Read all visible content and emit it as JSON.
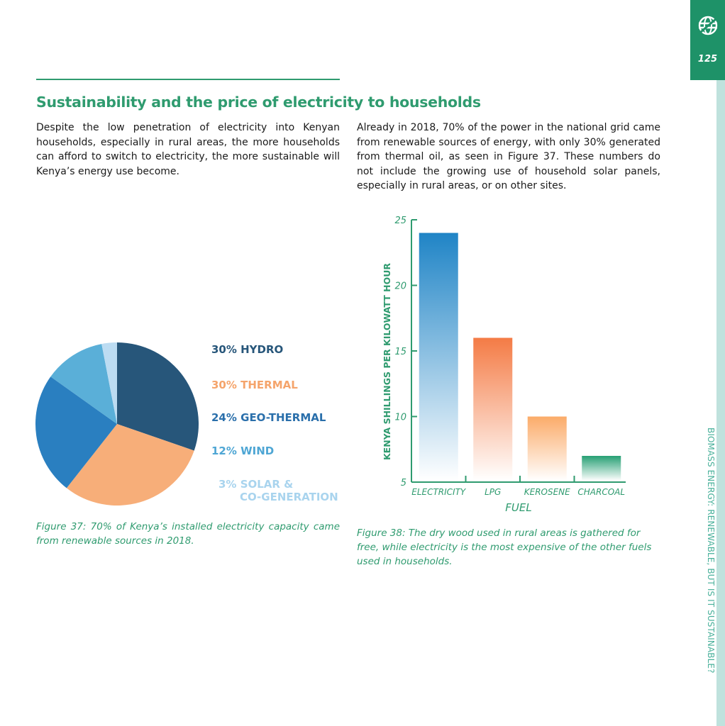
{
  "page": {
    "number": "125",
    "side_title": "BIOMASS ENERGY: RENEWABLE, BUT IS IT SUSTAINABLE?"
  },
  "heading": "Sustainability and the price of electricity to households",
  "paragraphs": {
    "left": "Despite the low penetration of electricity into Kenyan households, especially in rural areas, the more households can afford to switch to electricity, the more sustainable will Kenya’s energy use become.",
    "right": "Already in 2018, 70% of the power in the national grid came from renewable sources of energy, with only 30% generated from thermal oil, as seen in Figure 37.  These numbers do not include the growing use of household solar panels, especially in rural areas, or on other sites."
  },
  "captions": {
    "fig37": "Figure 37: 70% of Kenya’s installed electricity capacity came from renewable sources in 2018.",
    "fig38": "Figure 38: The dry wood used in rural areas is gathered for free, while electricity is the most expensive of the other fuels used in households."
  },
  "colors": {
    "accent": "#2f9b6f",
    "hydro": "#27567a",
    "thermal": "#f7ae79",
    "geothermal": "#2a7fc0",
    "wind": "#5aafd8",
    "solar": "#bcdcf2"
  },
  "chart_data": [
    {
      "type": "pie",
      "title": "",
      "slices": [
        {
          "name": "HYDRO",
          "label_line1": "30% HYDRO",
          "label_line2": "",
          "value": 30,
          "color": "#27567a",
          "label_color": "#27567a"
        },
        {
          "name": "THERMAL",
          "label_line1": "30% THERMAL",
          "label_line2": "",
          "value": 30,
          "color": "#f7ae79",
          "label_color": "#f5a46b"
        },
        {
          "name": "GEO-THERMAL",
          "label_line1": "24% GEO-THERMAL",
          "label_line2": "",
          "value": 24,
          "color": "#2a7fc0",
          "label_color": "#2a6fab"
        },
        {
          "name": "WIND",
          "label_line1": "12% WIND",
          "label_line2": "",
          "value": 12,
          "color": "#5aafd8",
          "label_color": "#4ea6d4"
        },
        {
          "name": "SOLAR & CO-GENERATION",
          "label_line1": "3% SOLAR &",
          "label_line2": "CO-GENERATION",
          "value": 3,
          "color": "#bcdcf2",
          "label_color": "#a9d4ee"
        }
      ],
      "start": "top, clockwise"
    },
    {
      "type": "bar",
      "title": "",
      "xlabel": "FUEL",
      "ylabel": "KENYA SHILLINGS PER KILOWATT HOUR",
      "categories": [
        "ELECTRICITY",
        "LPG",
        "KEROSENE",
        "CHARCOAL"
      ],
      "values": [
        24,
        16,
        10,
        7
      ],
      "ylim": [
        5,
        25
      ],
      "yticks": [
        5,
        10,
        15,
        20,
        25
      ],
      "bar_colors": [
        [
          "#1f84c6",
          "#ffffff"
        ],
        [
          "#f47b45",
          "#ffffff"
        ],
        [
          "#fbab69",
          "#ffffff"
        ],
        [
          "#27a074",
          "#ffffff"
        ]
      ],
      "grid": false,
      "legend": "none"
    }
  ]
}
